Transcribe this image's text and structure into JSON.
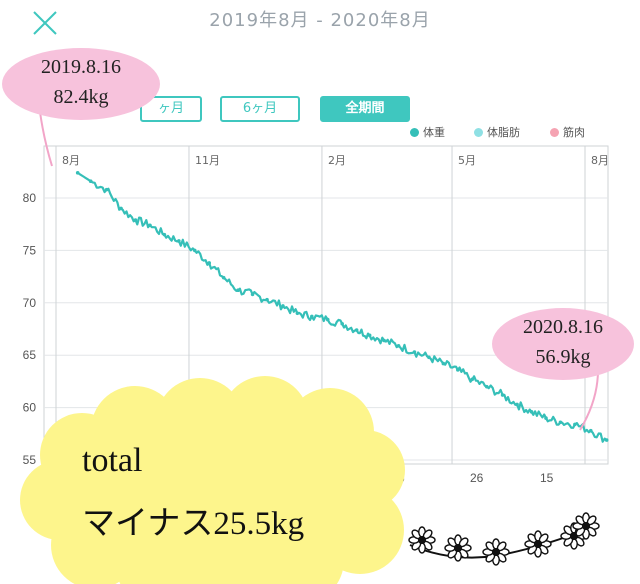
{
  "header": {
    "title": "2019年8月 - 2020年8月",
    "close_icon": "close-x-icon"
  },
  "range_buttons": [
    {
      "label": "ヶ月",
      "active": false
    },
    {
      "label": "6ヶ月",
      "active": false
    },
    {
      "label": "全期間",
      "active": true
    }
  ],
  "legend": [
    {
      "label": "体重",
      "color": "#35bfb8"
    },
    {
      "label": "体脂肪",
      "color": "#8fe0e4"
    },
    {
      "label": "筋肉",
      "color": "#f5a3b2"
    }
  ],
  "chart_data": {
    "type": "line",
    "title": "",
    "xlabel": "",
    "ylabel": "",
    "ylim": [
      55,
      82
    ],
    "y_ticks": [
      80,
      75,
      70,
      65,
      60,
      55
    ],
    "x_top_ticks": [
      "8月",
      "11月",
      "2月",
      "5月",
      "8月"
    ],
    "x_bottom_ticks": [
      "6",
      "26",
      "15"
    ],
    "grid": true,
    "series": [
      {
        "name": "体重",
        "color": "#35bfb8",
        "x": [
          "2019-08-16",
          "2019-08-25",
          "2019-09-05",
          "2019-09-15",
          "2019-09-25",
          "2019-10-05",
          "2019-10-15",
          "2019-10-25",
          "2019-11-05",
          "2019-11-15",
          "2019-11-25",
          "2019-12-05",
          "2019-12-15",
          "2019-12-25",
          "2020-01-05",
          "2020-01-15",
          "2020-01-25",
          "2020-02-05",
          "2020-02-15",
          "2020-02-25",
          "2020-03-05",
          "2020-03-15",
          "2020-03-25",
          "2020-04-05",
          "2020-04-15",
          "2020-04-25",
          "2020-05-05",
          "2020-05-15",
          "2020-05-25",
          "2020-06-05",
          "2020-06-15",
          "2020-06-25",
          "2020-07-05",
          "2020-07-15",
          "2020-07-25",
          "2020-08-05",
          "2020-08-16"
        ],
        "values": [
          82.4,
          81.6,
          80.8,
          79.0,
          77.9,
          77.4,
          76.5,
          75.9,
          75.0,
          73.8,
          72.4,
          71.2,
          70.8,
          70.3,
          69.7,
          69.0,
          68.7,
          68.4,
          68.0,
          67.4,
          66.9,
          66.4,
          65.9,
          65.3,
          64.8,
          64.2,
          63.6,
          62.7,
          62.0,
          61.2,
          60.3,
          59.6,
          59.0,
          58.6,
          58.4,
          57.8,
          56.9
        ]
      }
    ],
    "annotations": [
      {
        "date": "2019.8.16",
        "value": "82.4kg"
      },
      {
        "date": "2020.8.16",
        "value": "56.9kg"
      }
    ]
  },
  "overlay": {
    "total": "total",
    "minus": "マイナス25.5kg",
    "cloud_color": "#fdf58c",
    "bubble_color": "#f7c2dc"
  },
  "flowers_icon": "daisy-chain-decoration"
}
